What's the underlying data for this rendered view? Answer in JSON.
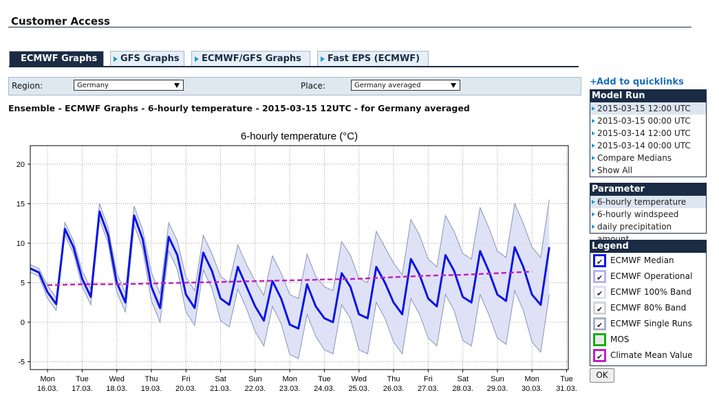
{
  "header": {
    "title": "Customer Access"
  },
  "tabs": [
    "ECMWF Graphs",
    "GFS Graphs",
    "ECMWF/GFS Graphs",
    "Fast EPS (ECMWF)"
  ],
  "filters": {
    "region_label": "Region:",
    "region": "Germany",
    "place_label": "Place:",
    "place": "Germany averaged"
  },
  "heading": "Ensemble - ECMWF Graphs - 6-hourly temperature - 2015-03-15 12UTC - for Germany averaged",
  "chart_data": {
    "type": "line",
    "title": "6-hourly temperature (°C)",
    "x": [
      -0.5,
      -0.25,
      0,
      0.25,
      0.5,
      0.75,
      1,
      1.25,
      1.5,
      1.75,
      2,
      2.25,
      2.5,
      2.75,
      3,
      3.25,
      3.5,
      3.75,
      4,
      4.25,
      4.5,
      4.75,
      5,
      5.25,
      5.5,
      5.75,
      6,
      6.25,
      6.5,
      6.75,
      7,
      7.25,
      7.5,
      7.75,
      8,
      8.25,
      8.5,
      8.75,
      9,
      9.25,
      9.5,
      9.75,
      10,
      10.25,
      10.5,
      10.75,
      11,
      11.25,
      11.5,
      11.75,
      12,
      12.25,
      12.5,
      12.75,
      13,
      13.25,
      13.5,
      13.75,
      14,
      14.25,
      14.5
    ],
    "series": [
      {
        "name": "ECMWF 100% Band",
        "color": "#dcdff5",
        "lower": [
          6.3,
          5.8,
          3.0,
          1.5,
          11.0,
          8.7,
          4.5,
          2.2,
          13.0,
          10.0,
          3.8,
          1.3,
          12.3,
          9.3,
          2.7,
          0.0,
          9.0,
          6.7,
          1.3,
          -0.4,
          6.6,
          4.3,
          0.2,
          -0.6,
          4.2,
          1.7,
          -1.2,
          -3.0,
          2.0,
          -0.2,
          -4.1,
          -4.6,
          1.0,
          -1.8,
          -3.5,
          -4.0,
          2.2,
          0.5,
          -3.5,
          -4.0,
          2.5,
          0.5,
          -2.5,
          -4.0,
          3.0,
          1.0,
          -2.0,
          -3.0,
          3.5,
          1.5,
          -2.3,
          -3.0,
          3.5,
          1.0,
          -2.0,
          -2.8,
          4.0,
          1.5,
          -2.5,
          -3.8,
          3.5
        ],
        "upper": [
          7.3,
          6.8,
          4.6,
          3.1,
          12.6,
          10.3,
          6.5,
          4.2,
          15.0,
          12.0,
          6.2,
          3.7,
          14.7,
          11.7,
          6.3,
          3.6,
          12.6,
          10.3,
          5.7,
          4.0,
          11.0,
          8.7,
          5.8,
          5.0,
          9.8,
          7.3,
          5.2,
          3.4,
          8.4,
          6.2,
          3.5,
          3.0,
          8.6,
          5.8,
          4.5,
          4.0,
          10.2,
          8.5,
          5.5,
          5.0,
          11.5,
          9.5,
          7.5,
          6.0,
          13.0,
          11.0,
          8.0,
          7.0,
          13.5,
          11.5,
          8.7,
          8.0,
          14.5,
          12.0,
          9.0,
          8.2,
          15.0,
          12.5,
          9.5,
          8.2,
          15.5
        ]
      },
      {
        "name": "ECMWF Median",
        "color": "#0a14e6",
        "values": [
          6.8,
          6.3,
          3.8,
          2.3,
          11.8,
          9.5,
          5.5,
          3.2,
          14.0,
          11.0,
          5.0,
          2.5,
          13.5,
          10.5,
          4.5,
          1.8,
          10.8,
          8.5,
          3.5,
          1.8,
          8.8,
          6.5,
          3.0,
          2.2,
          7.0,
          4.5,
          2.0,
          0.2,
          5.2,
          3.0,
          -0.3,
          -0.8,
          4.8,
          2.0,
          0.5,
          0.0,
          6.2,
          4.5,
          1.0,
          0.5,
          7.0,
          5.0,
          2.5,
          1.0,
          8.0,
          6.0,
          3.0,
          2.0,
          8.5,
          6.5,
          3.2,
          2.5,
          9.0,
          6.5,
          3.5,
          2.7,
          9.5,
          7.0,
          3.5,
          2.2,
          9.5
        ]
      },
      {
        "name": "Climate Mean Value",
        "color": "#c020c0",
        "dashed": true,
        "x": [
          0,
          1,
          2,
          3,
          4,
          5,
          6,
          7,
          8,
          9,
          10,
          11,
          12,
          13,
          14
        ],
        "values": [
          4.7,
          4.8,
          4.8,
          4.9,
          5.0,
          5.1,
          5.2,
          5.3,
          5.4,
          5.5,
          5.7,
          5.9,
          6.0,
          6.2,
          6.4
        ]
      }
    ],
    "xlim": [
      -0.5,
      15.05
    ],
    "xticks": [
      {
        "value": 0,
        "label": "Mon 16.03."
      },
      {
        "value": 1,
        "label": "Tue 17.03."
      },
      {
        "value": 2,
        "label": "Wed 18.03."
      },
      {
        "value": 3,
        "label": "Thu 19.03."
      },
      {
        "value": 4,
        "label": "Fri 20.03."
      },
      {
        "value": 5,
        "label": "Sat 21.03."
      },
      {
        "value": 6,
        "label": "Sun 22.03."
      },
      {
        "value": 7,
        "label": "Mon 23.03."
      },
      {
        "value": 8,
        "label": "Tue 24.03."
      },
      {
        "value": 9,
        "label": "Wed 25.03."
      },
      {
        "value": 10,
        "label": "Thu 26.03."
      },
      {
        "value": 11,
        "label": "Fri 27.03."
      },
      {
        "value": 12,
        "label": "Sat 28.03."
      },
      {
        "value": 13,
        "label": "Sun 29.03."
      },
      {
        "value": 14,
        "label": "Mon 30.03."
      },
      {
        "value": 15,
        "label": "Tue 31.03."
      }
    ],
    "ylim": [
      -6,
      22.35
    ],
    "yticks": [
      -5,
      0,
      5,
      10,
      15,
      20
    ],
    "grid": true
  },
  "sidebar": {
    "quicklinks": "Add to quicklinks",
    "model_run": {
      "title": "Model Run",
      "items": [
        "2015-03-15 12:00 UTC",
        "2015-03-15 00:00 UTC",
        "2015-03-14 12:00 UTC",
        "2015-03-14 00:00 UTC",
        "Compare Medians",
        "Show All"
      ]
    },
    "parameter": {
      "title": "Parameter",
      "items": [
        "6-hourly temperature",
        "6-hourly windspeed",
        "daily precipitation amount"
      ]
    },
    "legend": {
      "title": "Legend",
      "items": [
        {
          "name": "ECMWF Operational",
          "color": "#b4b4ea"
        },
        {
          "name": "ECMWF 80% Band",
          "color": "#d4d4d4"
        },
        {
          "name": "ECMWF Single Runs",
          "color": "#a8b0c0"
        },
        {
          "name": "MOS",
          "color": "#10b010"
        }
      ]
    },
    "ok": "OK"
  }
}
